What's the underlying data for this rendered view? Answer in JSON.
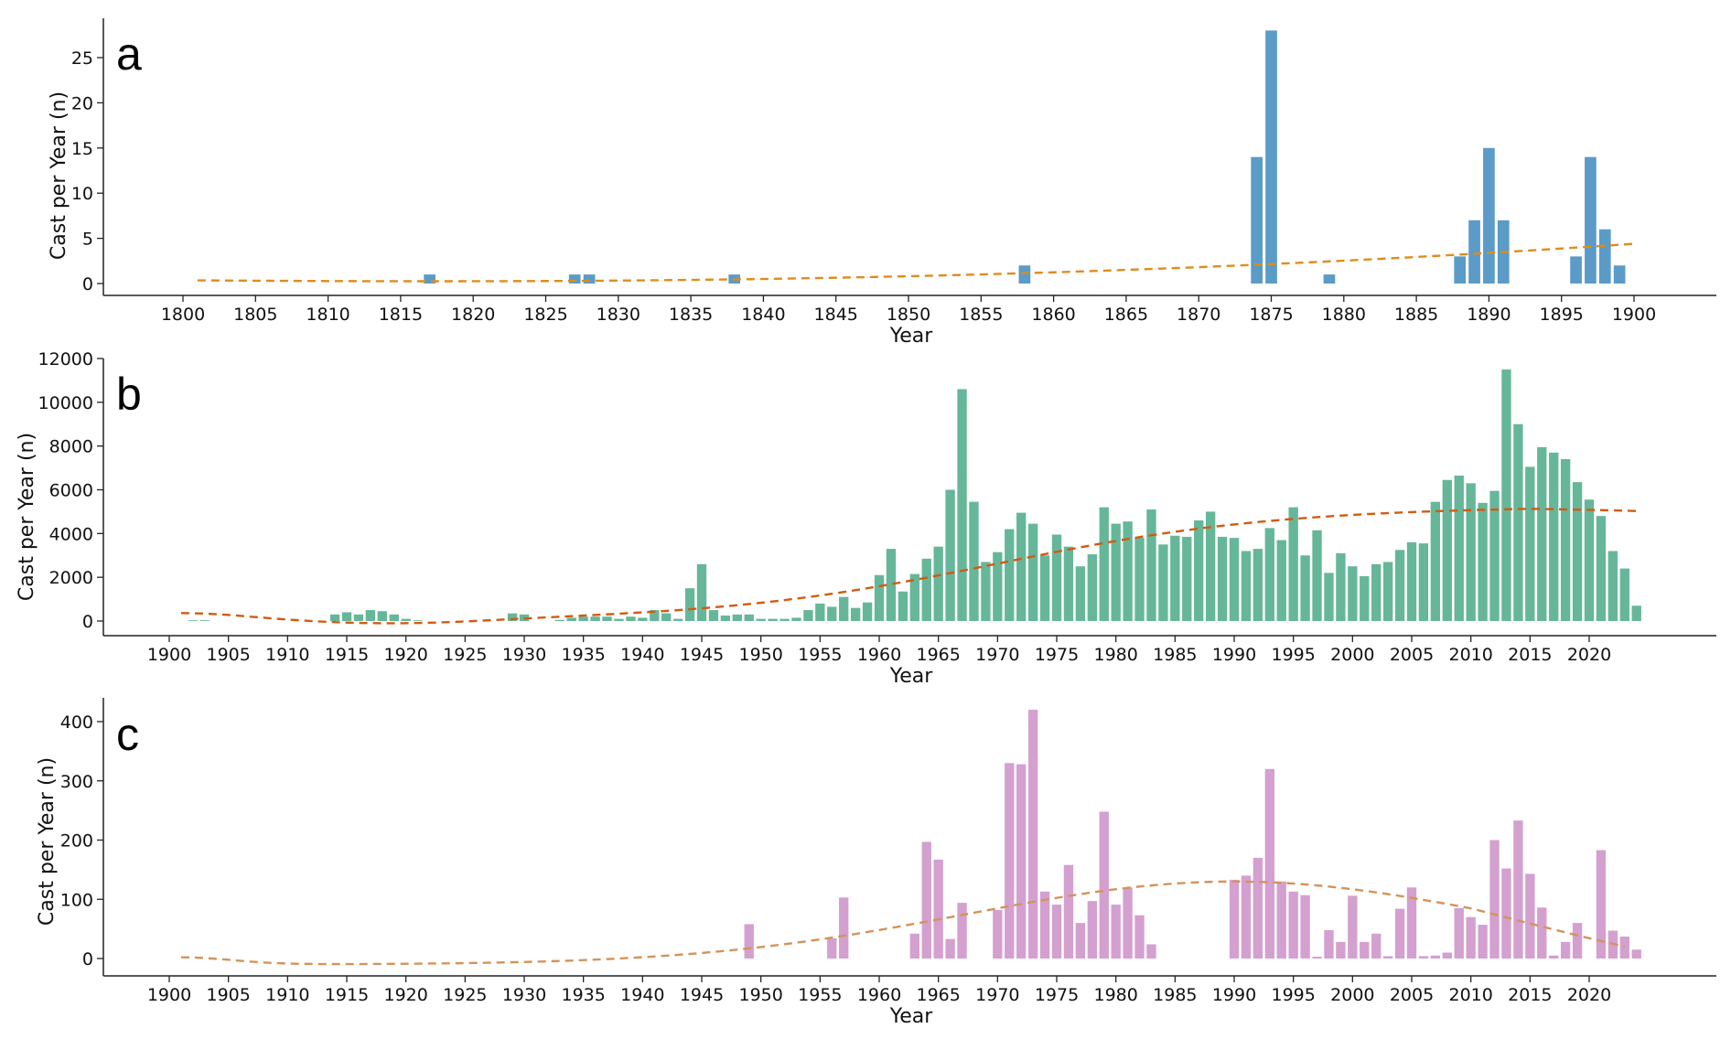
{
  "chart_data": [
    {
      "panel": "a",
      "type": "bar",
      "xlabel": "Year",
      "ylabel": "Cast per Year (n)",
      "xlim": [
        1799,
        1905
      ],
      "ylim": [
        0,
        30
      ],
      "xticks": [
        1800,
        1805,
        1810,
        1815,
        1820,
        1825,
        1830,
        1835,
        1840,
        1845,
        1850,
        1855,
        1860,
        1865,
        1870,
        1875,
        1880,
        1885,
        1890,
        1895,
        1900
      ],
      "yticks": [
        0,
        5,
        10,
        15,
        20,
        25
      ],
      "bar_color": "#5b9bc8",
      "trend_color": "#e08c1a",
      "grid": false,
      "x": [
        1817,
        1827,
        1828,
        1838,
        1858,
        1874,
        1875,
        1879,
        1888,
        1889,
        1890,
        1891,
        1896,
        1897,
        1898,
        1899
      ],
      "values": [
        1,
        1,
        1,
        1,
        2,
        14,
        28,
        1,
        3,
        7,
        15,
        7,
        3,
        14,
        6,
        2
      ],
      "trend": {
        "x": [
          1801,
          1900
        ],
        "poly": [
          1801,
          1900,
          0.35,
          0.1,
          4.4
        ]
      }
    },
    {
      "panel": "b",
      "type": "bar",
      "xlabel": "Year",
      "ylabel": "Cast per Year (n)",
      "xlim": [
        1898,
        2028
      ],
      "ylim": [
        0,
        12000
      ],
      "xticks": [
        1900,
        1905,
        1910,
        1915,
        1920,
        1925,
        1930,
        1935,
        1940,
        1945,
        1950,
        1955,
        1960,
        1965,
        1970,
        1975,
        1980,
        1985,
        1990,
        1995,
        2000,
        2005,
        2010,
        2015,
        2020
      ],
      "yticks": [
        0,
        2000,
        4000,
        6000,
        8000,
        10000,
        12000
      ],
      "bar_color": "#66b79a",
      "trend_color": "#d35a10",
      "grid": false,
      "x": [
        1902,
        1903,
        1914,
        1915,
        1916,
        1917,
        1918,
        1919,
        1920,
        1921,
        1929,
        1930,
        1933,
        1934,
        1935,
        1936,
        1937,
        1938,
        1939,
        1940,
        1941,
        1942,
        1943,
        1944,
        1945,
        1946,
        1947,
        1948,
        1949,
        1950,
        1951,
        1952,
        1953,
        1954,
        1955,
        1956,
        1957,
        1958,
        1959,
        1960,
        1961,
        1962,
        1963,
        1964,
        1965,
        1966,
        1967,
        1968,
        1969,
        1970,
        1971,
        1972,
        1973,
        1974,
        1975,
        1976,
        1977,
        1978,
        1979,
        1980,
        1981,
        1982,
        1983,
        1984,
        1985,
        1986,
        1987,
        1988,
        1989,
        1990,
        1991,
        1992,
        1993,
        1994,
        1995,
        1996,
        1997,
        1998,
        1999,
        2000,
        2001,
        2002,
        2003,
        2004,
        2005,
        2006,
        2007,
        2008,
        2009,
        2010,
        2011,
        2012,
        2013,
        2014,
        2015,
        2016,
        2017,
        2018,
        2019,
        2020,
        2021,
        2022,
        2023,
        2024
      ],
      "values": [
        20,
        20,
        300,
        400,
        300,
        500,
        450,
        300,
        100,
        30,
        350,
        300,
        50,
        150,
        200,
        200,
        200,
        100,
        200,
        150,
        500,
        350,
        100,
        1500,
        2600,
        500,
        250,
        300,
        300,
        100,
        100,
        100,
        150,
        500,
        800,
        650,
        1100,
        600,
        850,
        2100,
        3300,
        1350,
        2150,
        2850,
        3400,
        6000,
        10600,
        5450,
        2700,
        3150,
        4200,
        4950,
        4450,
        3000,
        3950,
        3400,
        2500,
        3050,
        5200,
        4450,
        4550,
        3800,
        5100,
        3500,
        3900,
        3850,
        4600,
        5000,
        3850,
        3800,
        3200,
        3300,
        4250,
        3700,
        5200,
        3000,
        4150,
        2200,
        3100,
        2500,
        2050,
        2600,
        2700,
        3250,
        3600,
        3550,
        5450,
        6450,
        6650,
        6300,
        5400,
        5950,
        11500,
        9000,
        7050,
        7950,
        7700,
        7400,
        6350,
        5550,
        4800,
        3200,
        2400,
        700
      ],
      "trend": {
        "x": [
          1901,
          2024
        ],
        "poly": [
          1901,
          2024,
          350,
          -150,
          5100
        ]
      }
    },
    {
      "panel": "c",
      "type": "bar",
      "xlabel": "Year",
      "ylabel": "Cast per Year (n)",
      "xlim": [
        1894,
        2029
      ],
      "ylim": [
        0,
        440
      ],
      "xticks": [
        1900,
        1905,
        1910,
        1915,
        1920,
        1925,
        1930,
        1935,
        1940,
        1945,
        1950,
        1955,
        1960,
        1965,
        1970,
        1975,
        1980,
        1985,
        1990,
        1995,
        2000,
        2005,
        2010,
        2015,
        2020
      ],
      "yticks": [
        0,
        100,
        200,
        300,
        400
      ],
      "bar_color": "#d4a0d0",
      "trend_color": "#d4935a",
      "grid": false,
      "x": [
        1949,
        1956,
        1957,
        1963,
        1964,
        1965,
        1966,
        1967,
        1970,
        1971,
        1972,
        1973,
        1974,
        1975,
        1976,
        1977,
        1978,
        1979,
        1980,
        1981,
        1982,
        1983,
        1990,
        1991,
        1992,
        1993,
        1994,
        1995,
        1996,
        1997,
        1998,
        1999,
        2000,
        2001,
        2002,
        2003,
        2004,
        2005,
        2006,
        2007,
        2008,
        2009,
        2010,
        2011,
        2012,
        2013,
        2014,
        2015,
        2016,
        2017,
        2018,
        2019,
        2021,
        2022,
        2023,
        2024
      ],
      "values": [
        58,
        34,
        103,
        42,
        197,
        167,
        33,
        94,
        82,
        330,
        328,
        420,
        113,
        91,
        158,
        60,
        97,
        248,
        91,
        120,
        73,
        24,
        133,
        140,
        170,
        320,
        130,
        113,
        107,
        3,
        48,
        28,
        106,
        28,
        42,
        4,
        84,
        120,
        4,
        5,
        10,
        85,
        70,
        57,
        200,
        152,
        233,
        143,
        86,
        5,
        28,
        60,
        183,
        47,
        37,
        15
      ],
      "trend": {
        "x": [
          1901,
          2023
        ],
        "poly": [
          1901,
          2023,
          5,
          -10,
          20
        ]
      }
    }
  ],
  "panels": [
    {
      "letter": "a",
      "ylabel": "Cast per Year (n)",
      "xlabel": "Year"
    },
    {
      "letter": "b",
      "ylabel": "Cast per Year (n)",
      "xlabel": "Year"
    },
    {
      "letter": "c",
      "ylabel": "Cast per Year (n)",
      "xlabel": "Year"
    }
  ]
}
